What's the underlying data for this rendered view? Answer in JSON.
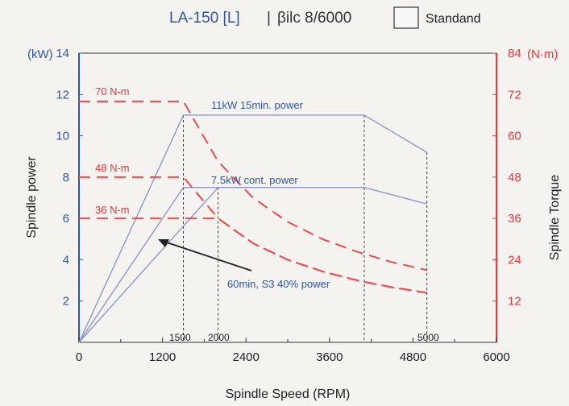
{
  "header": {
    "title": "LA-150 [L]",
    "separator": "|",
    "motor": "βilc 8/6000",
    "legend_label": "Standand"
  },
  "chart_data": {
    "type": "line",
    "xlabel": "Spindle Speed (RPM)",
    "ylabel_left": "Spindle power",
    "ylabel_right": "Spindle Torque",
    "unit_left": "(kW)",
    "unit_right": "(N·m)",
    "xlim": [
      0,
      6000
    ],
    "ylim_left": [
      0,
      14
    ],
    "ylim_right": [
      0,
      84
    ],
    "x_ticks": [
      "0",
      "1200",
      "2400",
      "3600",
      "4800",
      "6000"
    ],
    "x_tick_values": [
      0,
      1200,
      2400,
      3600,
      4800,
      6000
    ],
    "y_left_ticks": [
      "2",
      "4",
      "6",
      "8",
      "10",
      "12",
      "14"
    ],
    "y_left_tick_values": [
      2,
      4,
      6,
      8,
      10,
      12,
      14
    ],
    "y_right_ticks": [
      "12",
      "24",
      "36",
      "48",
      "60",
      "72",
      "84"
    ],
    "y_right_tick_values": [
      12,
      24,
      36,
      48,
      60,
      72,
      84
    ],
    "grid": false,
    "legend_position": "top-right",
    "colors": {
      "power": "#8e98c8",
      "torque": "#ef4a4f",
      "left_axis": "#2e56a8",
      "right_axis": "#e8383d",
      "guide": "#333333"
    },
    "power_series": [
      {
        "label": "11kW 15min. power",
        "x": [
          0,
          1500,
          4100,
          5000
        ],
        "y": [
          0,
          11,
          11,
          9.2
        ]
      },
      {
        "label": "7.5kW cont. power",
        "x": [
          0,
          1500,
          4100,
          5000
        ],
        "y": [
          0,
          7.5,
          7.5,
          6.7
        ]
      },
      {
        "label": "60min, S3 40% power",
        "x": [
          0,
          2000
        ],
        "y": [
          0,
          7.5
        ]
      }
    ],
    "torque_series": [
      {
        "label": "70 N-m",
        "x": [
          0,
          1500,
          2000,
          2500,
          3000,
          3500,
          4000,
          4500,
          5000
        ],
        "y": [
          70,
          70,
          52.5,
          42,
          35,
          30,
          26.3,
          23.3,
          21
        ]
      },
      {
        "label": "48 N-m",
        "x": [
          0,
          1500,
          2000,
          2500,
          3000,
          3500,
          4000,
          4500,
          5000
        ],
        "y": [
          48,
          48,
          36,
          28.8,
          24,
          20.6,
          18,
          16,
          14.4
        ]
      },
      {
        "label": "36 N-m",
        "x": [
          0,
          2000,
          2500,
          3000,
          3500,
          4000,
          4500,
          5000
        ],
        "y": [
          36,
          36,
          28.8,
          24,
          20.6,
          18,
          16,
          14.4
        ]
      }
    ],
    "speed_markers": [
      {
        "label": "1500",
        "x": 1500
      },
      {
        "label": "2000",
        "x": 2000
      },
      {
        "label": "",
        "x": 4100
      },
      {
        "label": "5000",
        "x": 5000
      }
    ]
  }
}
